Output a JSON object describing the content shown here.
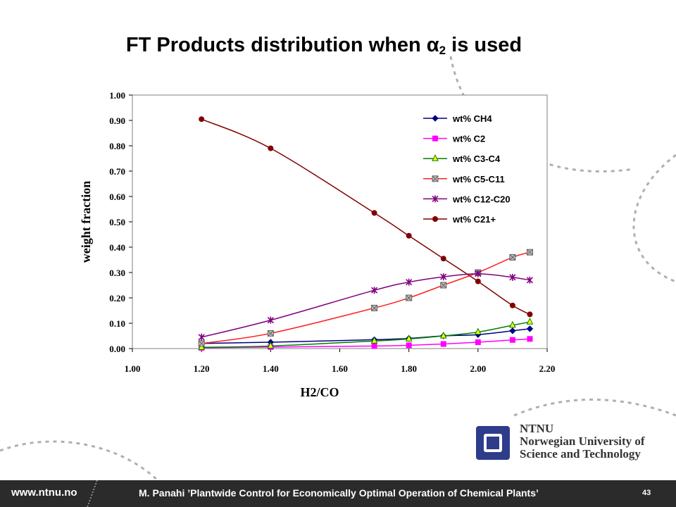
{
  "slide": {
    "title_main": "FT Products distribution when α",
    "title_sub": "2",
    "title_end": " is used"
  },
  "chart_data": {
    "type": "line",
    "xlabel": "H2/CO",
    "ylabel": "weight fraction",
    "xlim": [
      1.0,
      2.2
    ],
    "ylim": [
      0.0,
      1.0
    ],
    "x_ticks": [
      "1.00",
      "1.20",
      "1.40",
      "1.60",
      "1.80",
      "2.00",
      "2.20"
    ],
    "y_ticks": [
      "0.00",
      "0.10",
      "0.20",
      "0.30",
      "0.40",
      "0.50",
      "0.60",
      "0.70",
      "0.80",
      "0.90",
      "1.00"
    ],
    "x": [
      1.2,
      1.4,
      1.7,
      1.8,
      1.9,
      2.0,
      2.1,
      2.15
    ],
    "legend_position": "top-right",
    "grid": false,
    "series": [
      {
        "name": "wt% CH4",
        "color": "#000080",
        "marker": "diamond",
        "values": [
          0.02,
          0.025,
          0.035,
          0.04,
          0.05,
          0.055,
          0.07,
          0.078
        ]
      },
      {
        "name": "wt% C2",
        "color": "#ff00ff",
        "marker": "square",
        "values": [
          0.003,
          0.006,
          0.01,
          0.013,
          0.018,
          0.025,
          0.034,
          0.038
        ]
      },
      {
        "name": "wt% C3-C4",
        "color": "#008000",
        "marker": "triangle",
        "values": [
          0.005,
          0.01,
          0.03,
          0.038,
          0.05,
          0.065,
          0.092,
          0.105
        ]
      },
      {
        "name": "wt% C5-C11",
        "color": "#ff2020",
        "marker": "xsquare",
        "values": [
          0.02,
          0.06,
          0.16,
          0.2,
          0.25,
          0.3,
          0.36,
          0.38
        ]
      },
      {
        "name": "wt% C12-C20",
        "color": "#800080",
        "marker": "star",
        "values": [
          0.045,
          0.112,
          0.23,
          0.262,
          0.283,
          0.295,
          0.281,
          0.27
        ]
      },
      {
        "name": "wt% C21+",
        "color": "#800000",
        "marker": "circle",
        "values": [
          0.905,
          0.79,
          0.535,
          0.445,
          0.355,
          0.265,
          0.17,
          0.135
        ]
      }
    ]
  },
  "logo": {
    "line1": "NTNU",
    "line2": "Norwegian University of",
    "line3": "Science and Technology"
  },
  "footer": {
    "url": "www.ntnu.no",
    "text": "M. Panahi ’Plantwide Control for Economically Optimal Operation of Chemical Plants’",
    "page": "43"
  }
}
